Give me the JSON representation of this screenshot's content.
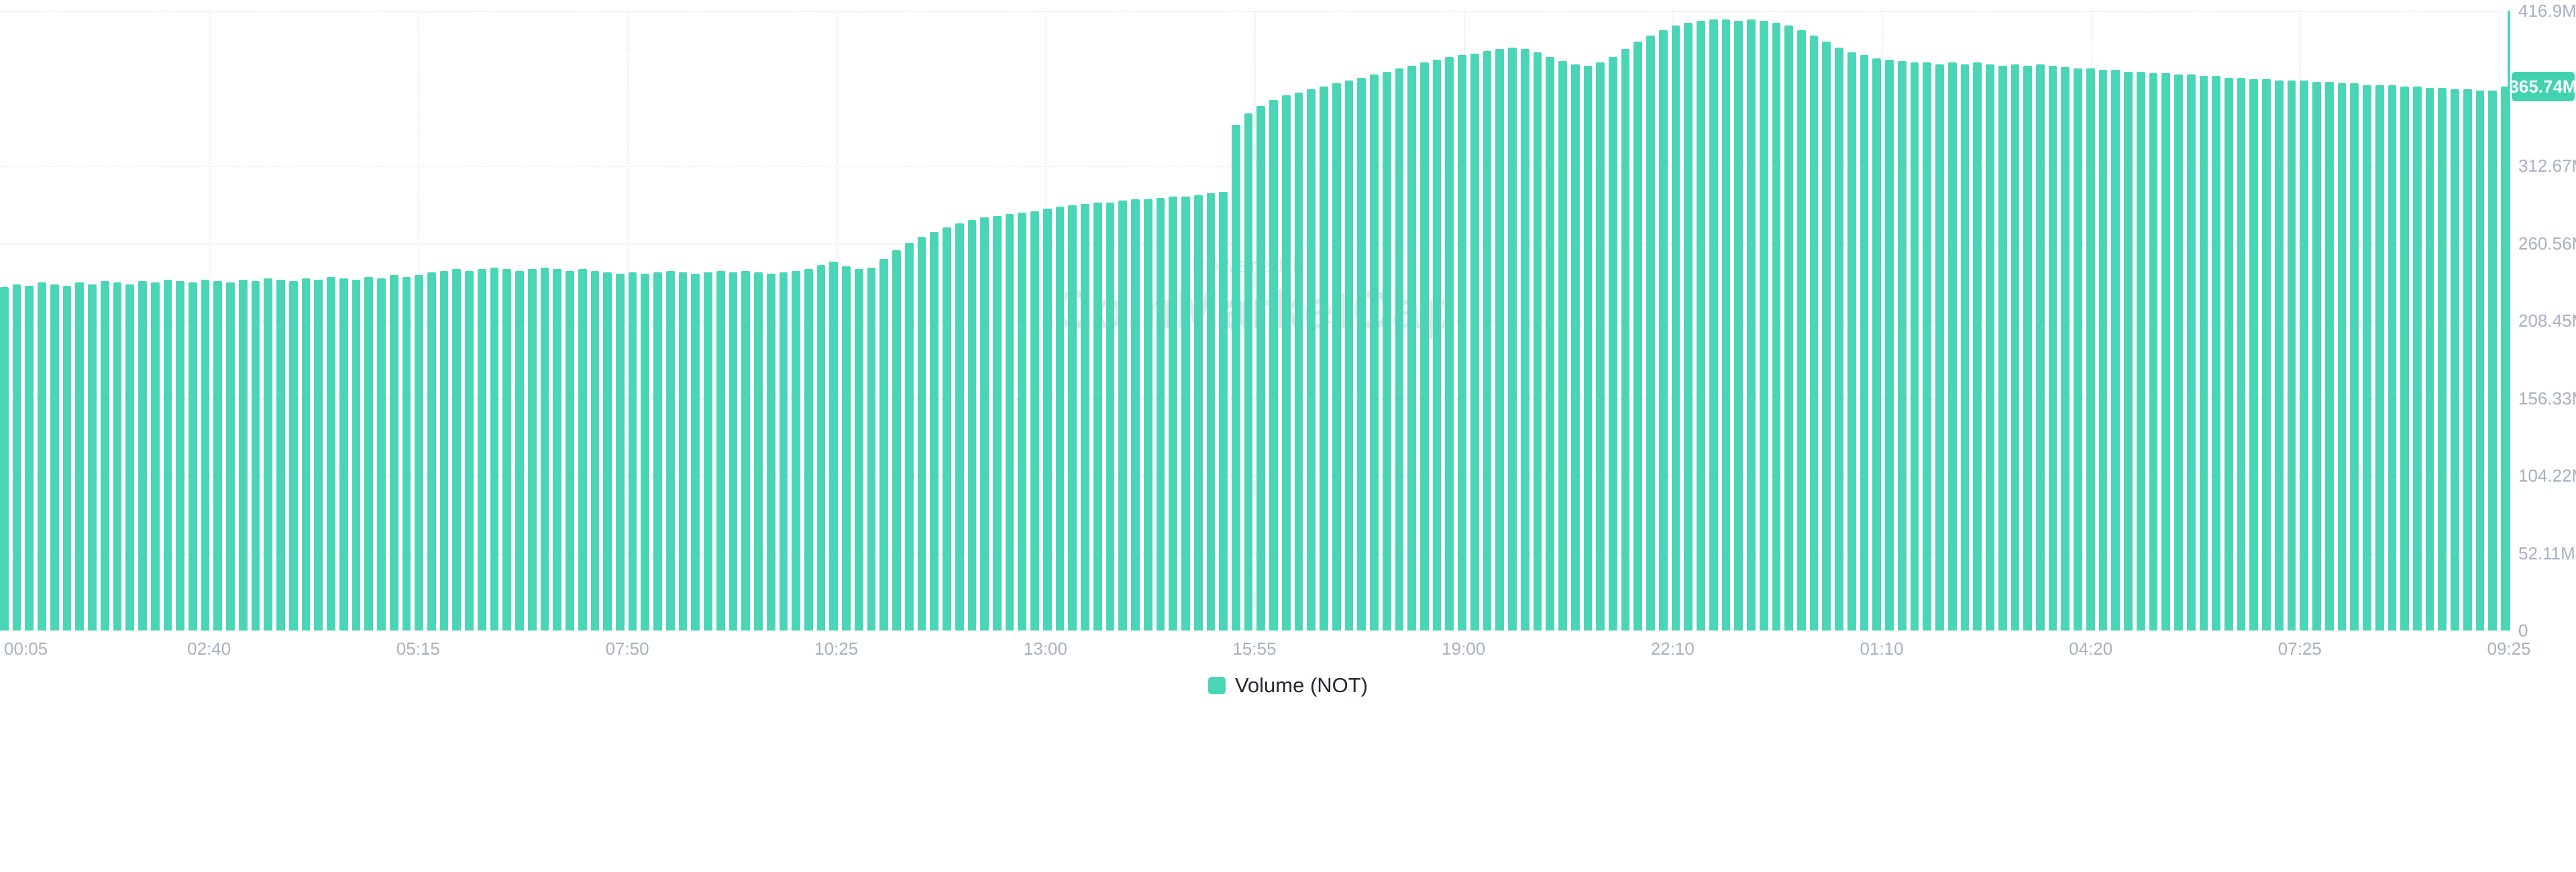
{
  "colors": {
    "background": "#FFFFFF",
    "bar": "#4AD6B6",
    "axis_line": "#4AD6B6",
    "badge_bg": "#42D2AF",
    "badge_text": "#FFFFFF",
    "axis_label": "#A8B0C2",
    "grid": "#E9ECF1",
    "legend_text": "#222831",
    "watermark": "#B9C0CD"
  },
  "watermark": {
    "line1": "Powered by",
    "line2": "CoinMarketCap"
  },
  "chart_data": {
    "type": "bar",
    "series_name": "Volume (NOT)",
    "legend_position": "bottom-center",
    "axis_side": "right",
    "grid": true,
    "y_axis": {
      "max": 416.9,
      "unit": "M",
      "ticks": [
        {
          "label": "416.9M",
          "value": 416.9
        },
        {
          "label": "312.67M",
          "value": 312.67
        },
        {
          "label": "260.56M",
          "value": 260.56
        },
        {
          "label": "208.45M",
          "value": 208.45
        },
        {
          "label": "156.33M",
          "value": 156.33
        },
        {
          "label": "104.22M",
          "value": 104.22
        },
        {
          "label": "52.11M",
          "value": 52.11
        },
        {
          "label": "0",
          "value": 0
        }
      ],
      "current": {
        "label": "365.74M",
        "value": 365.74
      }
    },
    "x_axis": {
      "tick_labels": [
        "00:05",
        "02:40",
        "05:15",
        "07:50",
        "10:25",
        "13:00",
        "15:55",
        "19:00",
        "22:10",
        "01:10",
        "04:20",
        "07:25",
        "09:25"
      ]
    },
    "values_millions": [
      231,
      233,
      232,
      234,
      233,
      232,
      234,
      233,
      235,
      234,
      233,
      235,
      234,
      236,
      235,
      234,
      236,
      235,
      234,
      236,
      235,
      237,
      236,
      235,
      237,
      236,
      238,
      237,
      236,
      238,
      237,
      239,
      238,
      239,
      241,
      242,
      243,
      242,
      243,
      244,
      243,
      242,
      243,
      244,
      243,
      242,
      243,
      242,
      241,
      240,
      241,
      240,
      241,
      242,
      241,
      240,
      241,
      242,
      241,
      242,
      241,
      240,
      241,
      242,
      243,
      246,
      248,
      245,
      243,
      244,
      250,
      256,
      261,
      265,
      268,
      271,
      274,
      276,
      278,
      279,
      280,
      281,
      282,
      284,
      285,
      286,
      287,
      288,
      288,
      289,
      290,
      290,
      291,
      292,
      292,
      293,
      294,
      295,
      340,
      348,
      353,
      357,
      360,
      362,
      364,
      366,
      368,
      370,
      372,
      374,
      376,
      378,
      380,
      382,
      384,
      386,
      387,
      388,
      390,
      391,
      392,
      391,
      389,
      386,
      383,
      381,
      380,
      382,
      386,
      391,
      396,
      400,
      404,
      407,
      409,
      410,
      411,
      411,
      410,
      411,
      410,
      409,
      407,
      404,
      400,
      396,
      392,
      389,
      387,
      385,
      384,
      383,
      382,
      382,
      381,
      382,
      381,
      382,
      381,
      380,
      381,
      380,
      381,
      380,
      379,
      378,
      378,
      377,
      377,
      376,
      376,
      375,
      375,
      374,
      374,
      373,
      373,
      372,
      372,
      371,
      371,
      370,
      370,
      370,
      369,
      369,
      368,
      368,
      367,
      367,
      367,
      366,
      366,
      365,
      365,
      364,
      364,
      363,
      363,
      365.74
    ]
  }
}
